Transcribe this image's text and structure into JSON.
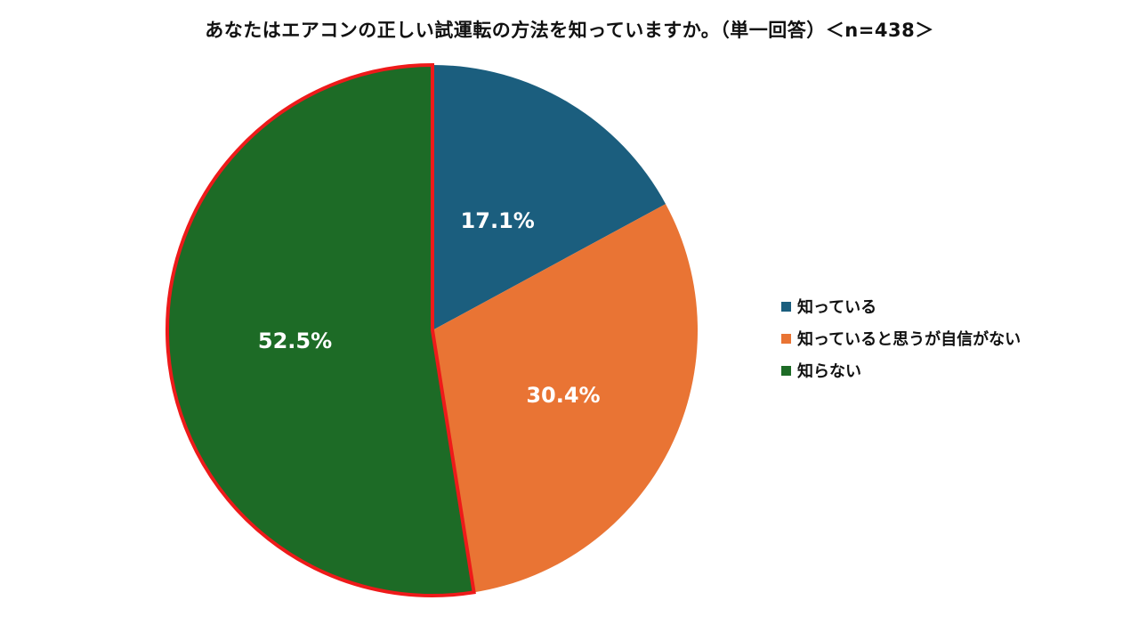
{
  "chart_data": {
    "type": "pie",
    "title": "あなたはエアコンの正しい試運転の方法を知っていますか。（単一回答）＜n=438＞",
    "n": 438,
    "categories": [
      "知っている",
      "知っていると思うが自信がない",
      "知らない"
    ],
    "values": [
      17.1,
      30.4,
      52.5
    ],
    "labels": [
      "17.1%",
      "30.4%",
      "52.5%"
    ],
    "colors": [
      "#1b5e7e",
      "#e97434",
      "#1d6b26"
    ],
    "highlight": {
      "category": "知らない",
      "border_color": "#ee1a1a"
    },
    "legend_position": "right",
    "start_angle": "12 o'clock, clockwise"
  }
}
